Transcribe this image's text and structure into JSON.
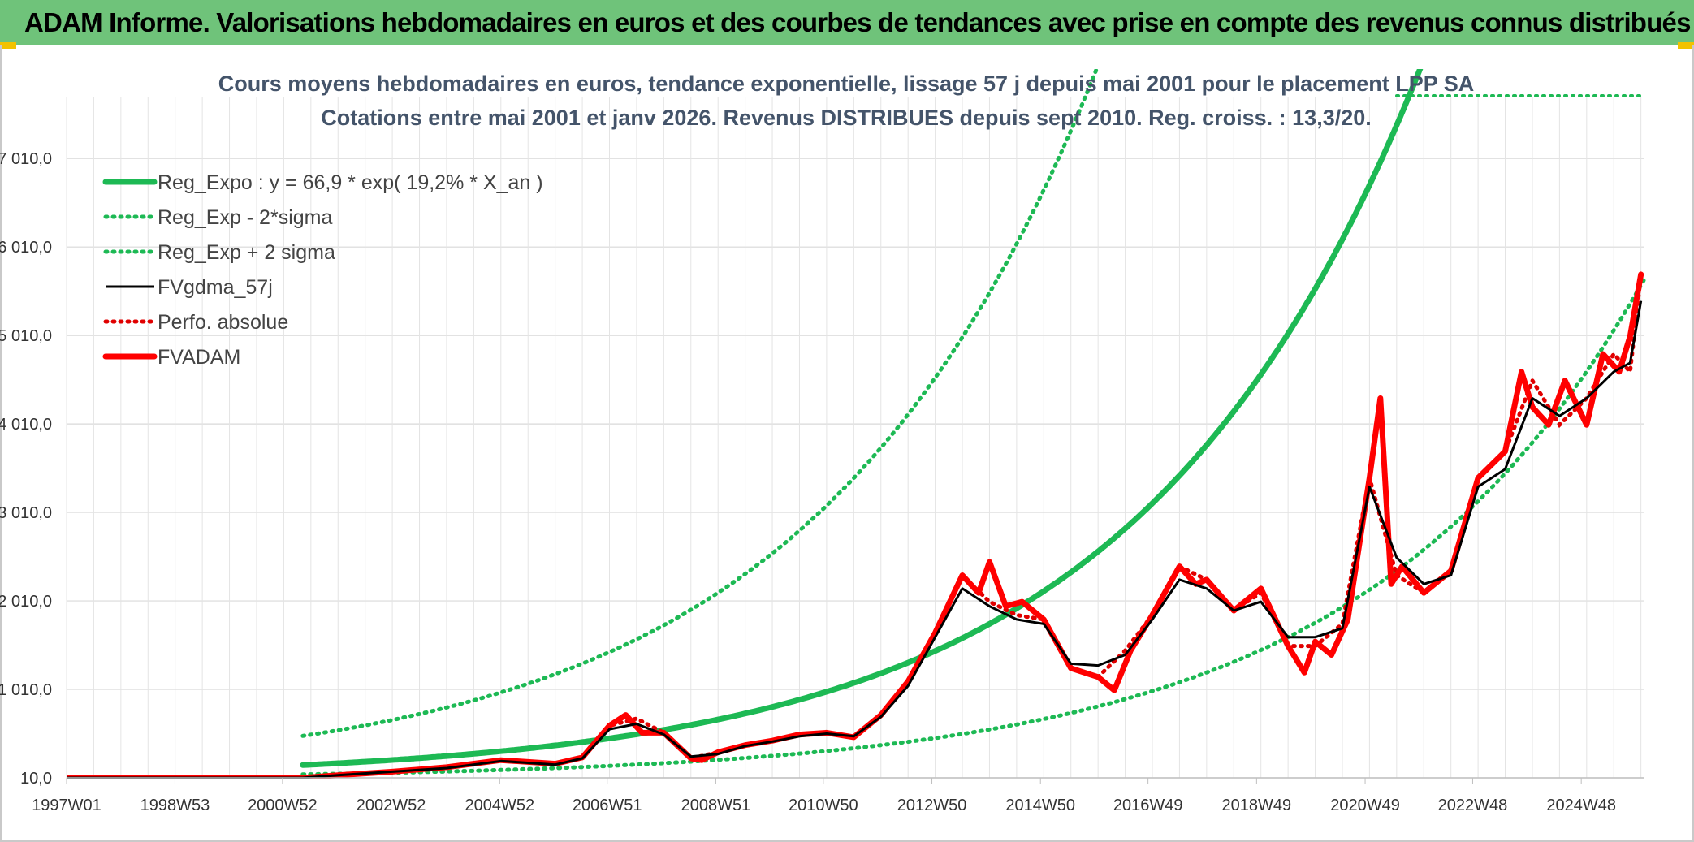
{
  "banner": {
    "title": "ADAM Informe. Valorisations hebdomadaires en euros et des courbes de tendances avec prise en compte des revenus connus distribués"
  },
  "chart_data": {
    "type": "line",
    "title_lines": [
      "Cours moyens hebdomadaires en euros, tendance exponentielle, lissage 57 j depuis mai 2001 pour le placement LPP SA",
      "Cotations entre mai 2001 et janv 2026. Revenus DISTRIBUES depuis sept 2010. Reg. croiss. : 13,3/20."
    ],
    "x_ticks": [
      "1997W01",
      "1998W53",
      "2000W52",
      "2002W52",
      "2004W52",
      "2006W51",
      "2008W51",
      "2010W50",
      "2012W50",
      "2014W50",
      "2016W49",
      "2018W49",
      "2020W49",
      "2022W48",
      "2024W48"
    ],
    "x_range_years": [
      1997.0,
      2026.05
    ],
    "y_ticks": [
      "10,0",
      "1 010,0",
      "2 010,0",
      "3 010,0",
      "4 010,0",
      "5 010,0",
      "6 010,0",
      "7 010,0"
    ],
    "y_tick_values": [
      10,
      1010,
      2010,
      3010,
      4010,
      5010,
      6010,
      7010
    ],
    "ylim": [
      10,
      7700
    ],
    "grid": true,
    "legend_position": "top-left",
    "series": [
      {
        "name": "Reg_Expo : y = 66,9 * exp( 19,2% *  X_an )",
        "style": "solid-thick",
        "color": "#1db954",
        "formula": {
          "a": 66.9,
          "rate": 0.192,
          "start_year": 2001.35,
          "end_year": 2026.05
        }
      },
      {
        "name": "Reg_Exp - 2*sigma",
        "style": "dotted",
        "color": "#1db954",
        "formula": {
          "a": 21.3,
          "rate": 0.192,
          "start_year": 2001.35,
          "end_year": 2026.05
        }
      },
      {
        "name": "Reg_Exp + 2 sigma",
        "style": "dotted",
        "color": "#1db954",
        "formula": {
          "a": 210.0,
          "rate": 0.192,
          "start_year": 2001.35,
          "end_year": 2026.05
        }
      },
      {
        "name": "FVgdma_57j",
        "style": "solid",
        "color": "#000000",
        "x": [
          1997.0,
          2001.35,
          2002.0,
          2003.0,
          2004.0,
          2005.0,
          2005.5,
          2006.0,
          2006.5,
          2007.0,
          2007.5,
          2008.0,
          2008.5,
          2009.0,
          2009.5,
          2010.0,
          2010.5,
          2011.0,
          2011.5,
          2012.0,
          2012.5,
          2013.0,
          2013.5,
          2014.0,
          2014.5,
          2015.0,
          2015.5,
          2016.0,
          2016.5,
          2017.0,
          2017.5,
          2018.0,
          2018.5,
          2019.0,
          2019.5,
          2020.0,
          2020.5,
          2021.0,
          2021.5,
          2022.0,
          2022.5,
          2023.0,
          2023.5,
          2024.0,
          2024.5,
          2025.0,
          2025.5,
          2025.8,
          2026.0
        ],
        "y": [
          10,
          10,
          40,
          80,
          120,
          200,
          180,
          160,
          230,
          560,
          620,
          500,
          250,
          280,
          370,
          420,
          480,
          510,
          480,
          700,
          1050,
          1600,
          2150,
          1950,
          1800,
          1750,
          1300,
          1280,
          1400,
          1800,
          2250,
          2150,
          1900,
          2000,
          1600,
          1600,
          1700,
          3300,
          2500,
          2200,
          2300,
          3300,
          3500,
          4300,
          4100,
          4300,
          4600,
          4700,
          5400
        ]
      },
      {
        "name": "Perfo. absolue",
        "style": "dotted",
        "color": "#e00000",
        "x": [
          1997.0,
          2001.35,
          2002.0,
          2003.0,
          2004.0,
          2005.0,
          2005.5,
          2006.0,
          2006.5,
          2007.0,
          2007.5,
          2008.0,
          2008.5,
          2009.0,
          2009.5,
          2010.0,
          2010.5,
          2011.0,
          2011.5,
          2012.0,
          2012.5,
          2013.0,
          2013.5,
          2014.0,
          2014.5,
          2015.0,
          2015.5,
          2016.0,
          2016.5,
          2017.0,
          2017.5,
          2018.0,
          2018.5,
          2019.0,
          2019.5,
          2020.0,
          2020.5,
          2021.0,
          2021.5,
          2022.0,
          2022.5,
          2023.0,
          2023.5,
          2024.0,
          2024.5,
          2025.0,
          2025.5,
          2025.8,
          2026.0
        ],
        "y": [
          10,
          10,
          40,
          80,
          130,
          210,
          190,
          170,
          240,
          600,
          680,
          520,
          230,
          300,
          380,
          430,
          500,
          520,
          470,
          720,
          1100,
          1650,
          2300,
          2000,
          1850,
          1800,
          1250,
          1150,
          1450,
          1850,
          2400,
          2250,
          1900,
          2100,
          1500,
          1500,
          1750,
          3400,
          2300,
          2100,
          2350,
          3400,
          3700,
          4500,
          4000,
          4300,
          4800,
          4600,
          5700
        ]
      },
      {
        "name": "FVADAM",
        "style": "solid-thick",
        "color": "#ff0000",
        "x": [
          1997.0,
          2001.35,
          2002.0,
          2003.0,
          2004.0,
          2005.0,
          2005.5,
          2006.0,
          2006.5,
          2007.0,
          2007.3,
          2007.6,
          2008.0,
          2008.5,
          2008.7,
          2009.0,
          2009.5,
          2010.0,
          2010.5,
          2011.0,
          2011.5,
          2012.0,
          2012.5,
          2013.0,
          2013.5,
          2013.8,
          2014.0,
          2014.3,
          2014.6,
          2015.0,
          2015.5,
          2016.0,
          2016.3,
          2016.6,
          2017.0,
          2017.5,
          2017.8,
          2018.0,
          2018.5,
          2019.0,
          2019.5,
          2019.8,
          2020.0,
          2020.3,
          2020.6,
          2021.0,
          2021.2,
          2021.4,
          2021.6,
          2022.0,
          2022.5,
          2023.0,
          2023.5,
          2023.8,
          2024.0,
          2024.3,
          2024.6,
          2025.0,
          2025.3,
          2025.6,
          2025.8,
          2026.0
        ],
        "y": [
          10,
          10,
          40,
          80,
          130,
          210,
          190,
          170,
          240,
          600,
          720,
          520,
          520,
          230,
          210,
          300,
          380,
          430,
          500,
          520,
          470,
          720,
          1100,
          1650,
          2300,
          2100,
          2450,
          1950,
          2000,
          1800,
          1250,
          1150,
          1000,
          1450,
          1850,
          2400,
          2200,
          2250,
          1900,
          2150,
          1500,
          1200,
          1550,
          1400,
          1800,
          3400,
          4300,
          2200,
          2400,
          2100,
          2350,
          3400,
          3700,
          4600,
          4200,
          4000,
          4500,
          4000,
          4800,
          4600,
          5000,
          5700
        ]
      }
    ]
  }
}
